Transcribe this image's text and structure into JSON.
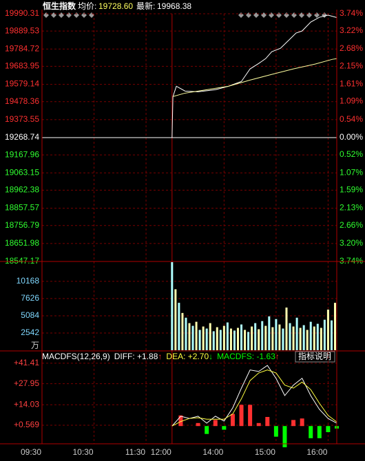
{
  "header": {
    "name": "恒生指数",
    "avg_label": "均价:",
    "avg": "19728.60",
    "last_label": "最新:",
    "last": "19968.38"
  },
  "button": "指标说明",
  "chart_data": [
    {
      "type": "line",
      "xlim": [
        0,
        340
      ],
      "xticks": [
        {
          "value": 0,
          "label": "09:30"
        },
        {
          "value": 60,
          "label": "10:30"
        },
        {
          "value": 120,
          "label": "11:30"
        },
        {
          "value": 150,
          "label": "12:00"
        },
        {
          "value": 210,
          "label": "14:00"
        },
        {
          "value": 270,
          "label": "15:00"
        },
        {
          "value": 330,
          "label": "16:00"
        }
      ],
      "ylim": [
        18547.17,
        19990.31
      ],
      "yticks": [
        19990.31,
        19889.53,
        19784.72,
        19683.95,
        19579.14,
        19478.36,
        19373.55,
        19268.74,
        19167.96,
        19063.15,
        18962.38,
        18857.57,
        18756.79,
        18651.98,
        18547.17
      ],
      "y2lim": [
        -3.74,
        3.74
      ],
      "y2ticks": [
        {
          "value": 3.74,
          "label": "3.74%"
        },
        {
          "value": 3.22,
          "label": "3.22%"
        },
        {
          "value": 2.68,
          "label": "2.68%"
        },
        {
          "value": 2.15,
          "label": "2.15%"
        },
        {
          "value": 1.61,
          "label": "1.61%"
        },
        {
          "value": 1.09,
          "label": "1.09%"
        },
        {
          "value": 0.54,
          "label": "0.54%"
        },
        {
          "value": 0,
          "label": "0.00%"
        },
        {
          "value": -0.52,
          "label": "0.52%"
        },
        {
          "value": -1.07,
          "label": "1.07%"
        },
        {
          "value": -1.59,
          "label": "1.59%"
        },
        {
          "value": -2.13,
          "label": "2.13%"
        },
        {
          "value": -2.66,
          "label": "2.66%"
        },
        {
          "value": -3.2,
          "label": "3.20%"
        },
        {
          "value": -3.74,
          "label": "3.74%"
        }
      ],
      "grid": true,
      "series": [
        {
          "color": "#ffffff",
          "x": [
            0,
            150,
            151,
            155,
            165,
            180,
            200,
            215,
            230,
            240,
            250,
            258,
            265,
            275,
            285,
            293,
            300,
            310,
            320,
            330,
            340
          ],
          "values": [
            19268.74,
            19268.74,
            19508,
            19568,
            19540,
            19536,
            19548,
            19568,
            19596,
            19669,
            19701,
            19729,
            19769,
            19789,
            19838,
            19878,
            19890,
            19942,
            19970,
            19982,
            19968.38
          ]
        },
        {
          "color": "#ffffa0",
          "x": [
            151,
            165,
            190,
            215,
            240,
            265,
            290,
            315,
            335,
            340
          ],
          "values": [
            19508,
            19528,
            19548,
            19568,
            19604,
            19637,
            19669,
            19697,
            19725,
            19728.6
          ]
        }
      ]
    },
    {
      "type": "bar",
      "unit": "万",
      "ylim": [
        0,
        13000
      ],
      "yticks": [
        2542,
        5084,
        7626,
        10168
      ],
      "colors": [
        "#b0ffff",
        "#ffffb0"
      ],
      "x": [
        150,
        154,
        158,
        162,
        166,
        170,
        174,
        178,
        182,
        186,
        190,
        194,
        198,
        202,
        206,
        210,
        214,
        218,
        222,
        226,
        230,
        234,
        238,
        242,
        246,
        250,
        254,
        258,
        262,
        266,
        270,
        274,
        278,
        282,
        286,
        290,
        294,
        298,
        302,
        306,
        310,
        314,
        318,
        322,
        326,
        330,
        334,
        338
      ],
      "values": [
        13000,
        9000,
        7000,
        5500,
        4800,
        4000,
        3600,
        4200,
        3000,
        3500,
        3200,
        4000,
        2800,
        3400,
        3000,
        3600,
        4100,
        3200,
        2900,
        3300,
        3800,
        3000,
        2700,
        3500,
        4000,
        3100,
        4300,
        3600,
        5000,
        3400,
        4600,
        3800,
        3200,
        6300,
        4000,
        3500,
        4800,
        3300,
        3700,
        3000,
        4200,
        3500,
        3900,
        3300,
        4500,
        6000,
        4400,
        7000
      ]
    },
    {
      "type": "macd",
      "indicator": "MACDFS(12,26,9)",
      "ylim": [
        -11.7,
        44.1
      ],
      "yticks": [
        {
          "value": 41.41,
          "label": "+41.41"
        },
        {
          "value": 27.95,
          "label": "+27.95"
        },
        {
          "value": 14.03,
          "label": "+14.03"
        },
        {
          "value": 0.569,
          "label": "+0.569"
        }
      ],
      "x": [
        150,
        160,
        170,
        180,
        190,
        200,
        210,
        220,
        230,
        240,
        250,
        260,
        270,
        280,
        290,
        300,
        310,
        320,
        330,
        340
      ],
      "series": [
        {
          "name": "DIFF",
          "legend": "DIFF: +1.88",
          "arrow": "↑",
          "arrow_color": "#ff3030",
          "color": "#ffffff",
          "values": [
            0,
            6.5,
            5,
            6.5,
            1.9,
            6.5,
            3.3,
            12,
            25,
            37,
            36,
            40,
            31.4,
            20.1,
            27,
            31.5,
            20,
            11,
            5,
            1.88
          ]
        },
        {
          "name": "DEA",
          "legend": "DEA: +2.70",
          "arrow": "↓",
          "arrow_color": "#00ff00",
          "color": "#ffff40",
          "values": [
            0,
            3,
            5,
            5.5,
            4.5,
            4.5,
            4.5,
            8,
            18,
            30,
            35,
            37,
            35,
            27,
            25,
            29,
            24,
            15,
            7,
            2.7
          ]
        },
        {
          "name": "MACDFS",
          "legend": "MACDFS: -1.63",
          "arrow": "↑",
          "arrow_color": "#ff3030",
          "color": "#00ff00",
          "up_color": "#ff3030",
          "down_color": "#00ff00",
          "values": [
            0,
            7,
            0,
            2,
            -5.2,
            4,
            -2.4,
            8,
            14,
            14,
            2,
            6,
            -7,
            -14,
            4,
            5,
            -8,
            -8,
            -4,
            -1.63
          ]
        }
      ]
    }
  ]
}
